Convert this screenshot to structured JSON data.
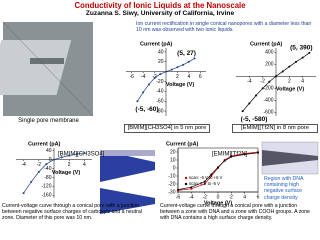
{
  "header": {
    "title": "Conductivity of Ionic Liquids at the Nanoscale",
    "subtitle": "Zuzanna S. Siwy, University of California, Irvine"
  },
  "intro": "Ion current rectification in single conical nanopores with a diameter less than 10 nm was observed with two ionic liquids.",
  "photo_label": "Single pore membrane",
  "note": "Region with DNA containing high negative surface charge density",
  "chart_data": [
    {
      "type": "line",
      "y_label": "Current (pA)",
      "x_label": "Voltage (V)",
      "caption": "[BMIM][CH3SO4] in 5 nm pore",
      "annotations": [
        "(5, 27)",
        "(-5, -60)"
      ],
      "x": [
        -5,
        -4,
        -3,
        -2,
        -1,
        0,
        1,
        2,
        3,
        4,
        5
      ],
      "series": [
        {
          "color": "#1f3f8f",
          "values": [
            -60,
            -42,
            -26,
            -13,
            -5,
            0,
            4,
            9,
            14,
            20,
            27
          ]
        }
      ],
      "xlim": [
        -7,
        7
      ],
      "xticks": [
        -6,
        -4,
        -2,
        2,
        4,
        6
      ],
      "ylim": [
        -90,
        48
      ],
      "yticks": [
        40,
        20,
        -20,
        -40,
        -60,
        -80
      ]
    },
    {
      "type": "line",
      "y_label": "Current (pA)",
      "x_label": "Voltage (V)",
      "caption": "[EMIM][Tf2N] in 8 nm pore",
      "annotations": [
        "(5, 390)",
        "(-5, -580)"
      ],
      "x": [
        -5,
        -4,
        -3,
        -2,
        -1,
        0,
        1,
        2,
        3,
        4,
        5
      ],
      "series": [
        {
          "color": "#000000",
          "values": [
            -580,
            -450,
            -320,
            -200,
            -90,
            0,
            80,
            160,
            240,
            310,
            390
          ]
        }
      ],
      "xlim": [
        -6,
        6
      ],
      "xticks": [
        -4,
        -2,
        2,
        4
      ],
      "ylim": [
        -660,
        470
      ],
      "yticks": [
        400,
        200,
        -200,
        -400,
        -600
      ]
    },
    {
      "type": "line",
      "y_label": "Current (pA)",
      "x_label": "Voltage (V)",
      "label": "[BMIM][CH3SO4]",
      "caption": "Current-voltage curve through a conical pore with a junction between negative surface charges of carboxyls and a neutral zone. Diameter of this pore was 10 nm.",
      "x": [
        -4,
        -3,
        -2,
        -1,
        0,
        1,
        2,
        3,
        4
      ],
      "series": [
        {
          "color": "#1f3f8f",
          "values": [
            -150,
            -100,
            -55,
            -20,
            0,
            10,
            18,
            25,
            30
          ]
        }
      ],
      "xlim": [
        -5,
        5
      ],
      "xticks": [
        -4,
        -2,
        2,
        4
      ],
      "ylim": [
        -172,
        52
      ],
      "yticks": [
        40,
        0,
        -40,
        -80,
        -120,
        -160
      ]
    },
    {
      "type": "line",
      "y_label": "Current (pA)",
      "x_label": "Voltage (V)",
      "label": "[EMIM][Tf2N]",
      "caption": "Current-voltage curve through a conical pore with a junction between a zone with DNA and a zone with COOH groups. A zone with DNA contains a high surface charge density.",
      "x": [
        -6,
        -4,
        -2,
        -1,
        0,
        1,
        2,
        4,
        6
      ],
      "series": [
        {
          "name": "scan: -6 V to +6 V",
          "color": "#cc0000",
          "values": [
            -28,
            -26,
            -20,
            -10,
            0,
            10,
            15,
            18,
            20
          ]
        },
        {
          "name": "scan: 6 V to -6 V",
          "color": "#000000",
          "values": [
            -27,
            -24,
            -17,
            -8,
            1,
            9,
            14,
            17,
            19
          ]
        }
      ],
      "xlim": [
        -6,
        6
      ],
      "xticks": [
        -6,
        -4,
        -2,
        0,
        2,
        4,
        6
      ],
      "ylim": [
        -30,
        25
      ],
      "yticks": [
        20,
        10,
        0,
        -10,
        -20,
        -30
      ]
    }
  ]
}
